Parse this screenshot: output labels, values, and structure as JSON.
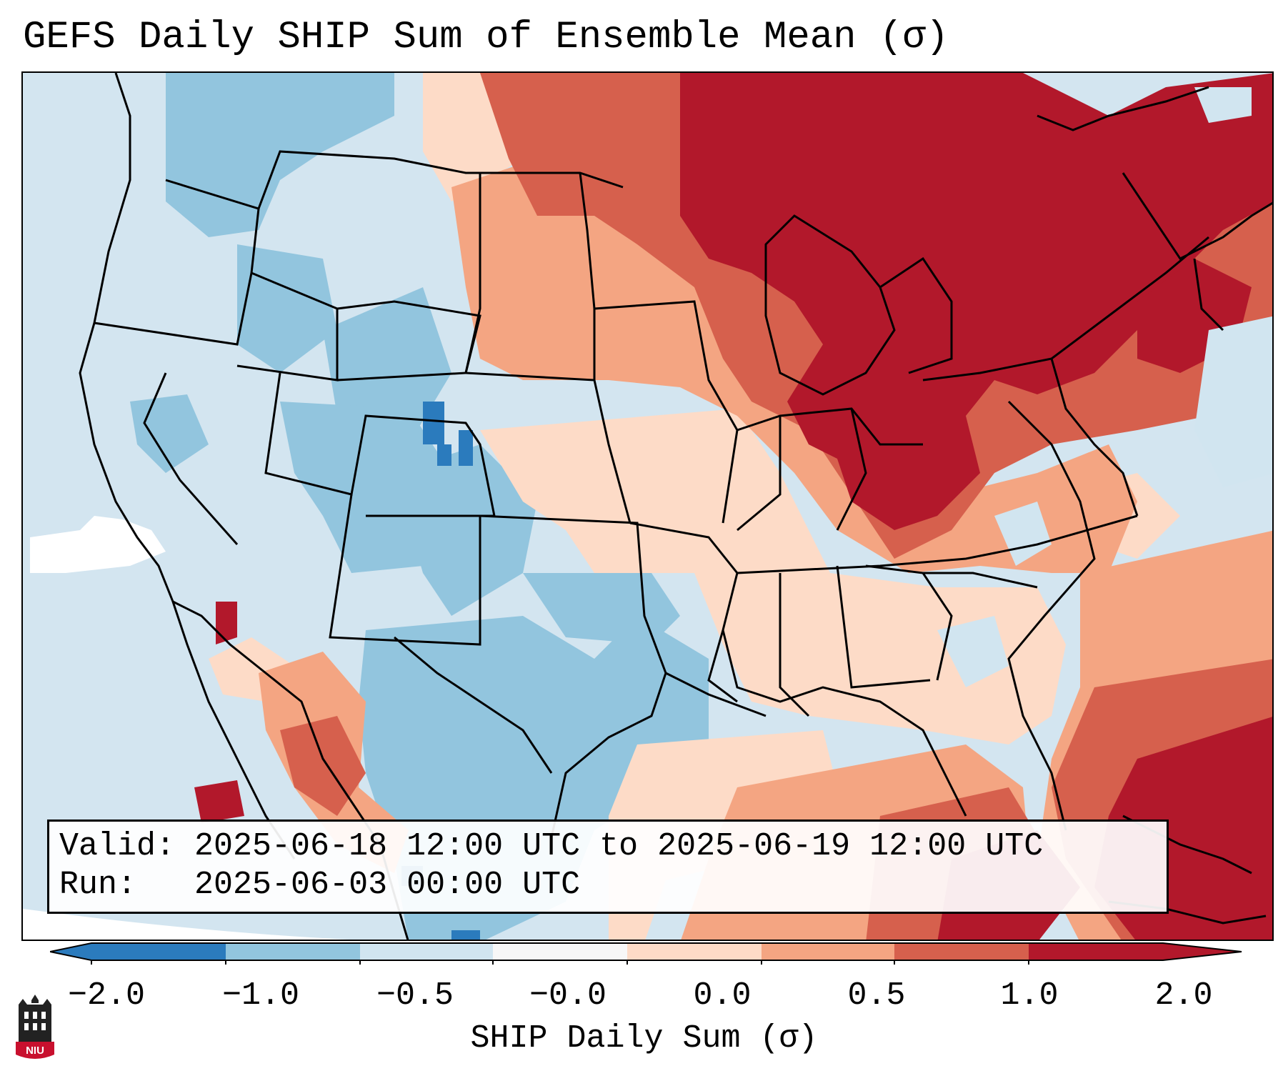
{
  "title": "GEFS Daily SHIP Sum of Ensemble Mean (σ)",
  "info": {
    "valid_line": "Valid: 2025-06-18 12:00 UTC to 2025-06-19 12:00 UTC",
    "run_line": "Run:   2025-06-03 00:00 UTC"
  },
  "colorbar": {
    "label": "SHIP Daily Sum (σ)",
    "ticks": [
      "−2.0",
      "−1.0",
      "−0.5",
      "−0.0",
      "0.0",
      "0.5",
      "1.0",
      "2.0"
    ],
    "colors": [
      "#2b7bbd",
      "#92c5de",
      "#d1e5f0",
      "#f7f7f7",
      "#fddbc7",
      "#f4a582",
      "#d6604d",
      "#b2182b"
    ]
  },
  "logo": {
    "text": "NIU"
  }
}
